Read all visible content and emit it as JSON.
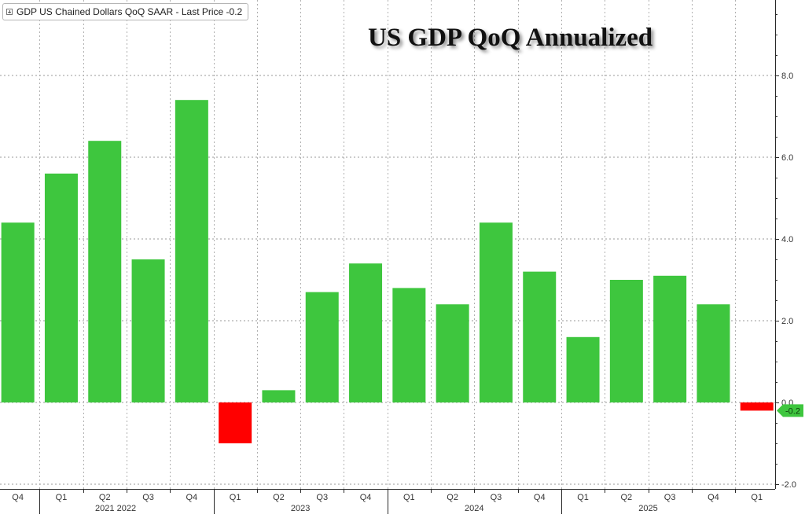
{
  "chart_data": {
    "type": "bar",
    "title": "US GDP QoQ Annualized",
    "legend": {
      "label": "GDP US Chained Dollars QoQ SAAR - Last Price -0.2",
      "placement": "top-left"
    },
    "quarters": [
      "Q4",
      "Q1",
      "Q2",
      "Q3",
      "Q4",
      "Q1",
      "Q2",
      "Q3",
      "Q4",
      "Q1",
      "Q2",
      "Q3",
      "Q4",
      "Q1",
      "Q2",
      "Q3",
      "Q4",
      "Q1"
    ],
    "years": [
      "2021",
      "2022",
      "2023",
      "2024",
      "2025"
    ],
    "values": [
      4.4,
      5.6,
      6.4,
      3.5,
      7.4,
      -1.0,
      0.3,
      2.7,
      3.4,
      2.8,
      2.4,
      4.4,
      3.2,
      1.6,
      3.0,
      3.1,
      2.4,
      -0.2
    ],
    "yticks": [
      "8.0",
      "6.0",
      "4.0",
      "2.0",
      "0.0",
      "-2.0"
    ],
    "ylim": [
      -2.0,
      10.0
    ],
    "last_value_label": "-0.2",
    "grid": true,
    "y_axis_side": "right",
    "colors": {
      "positive": "#3ec63e",
      "negative": "#ff0000",
      "last_marker": "#3ec63e"
    }
  }
}
